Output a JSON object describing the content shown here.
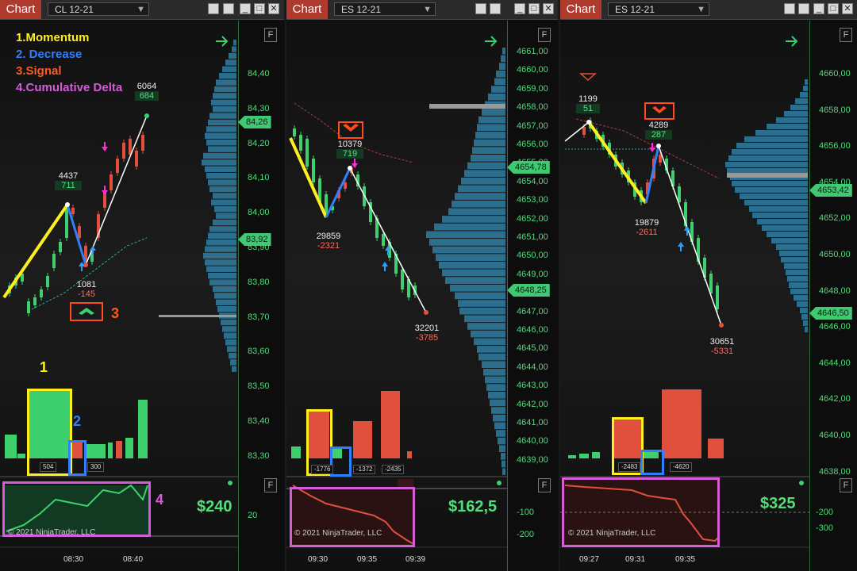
{
  "panels": [
    {
      "tab_label": "Chart",
      "instrument": "CL 12-21",
      "f_label": "F",
      "price_ticks": [
        "84,40",
        "84,30",
        "84,20",
        "84,10",
        "84,00",
        "83,90",
        "83,80",
        "83,70",
        "83,60",
        "83,50",
        "83,40",
        "83,30"
      ],
      "last_price": "84,26",
      "other_price": "83,92",
      "labels": [
        {
          "n": "6064",
          "d": "684",
          "c": "g"
        },
        {
          "n": "4437",
          "d": "711",
          "c": "g"
        },
        {
          "n": "1081",
          "d": "-145",
          "c": "r"
        }
      ],
      "vol_labels": [
        "504",
        "300"
      ],
      "pnl": "$240",
      "indicator_tick": "20",
      "copyright": "© 2021 NinjaTrader, LLC",
      "times": [
        "08:30",
        "08:40"
      ],
      "legend": [
        "1.Momentum",
        "2. Decrease",
        "3.Signal",
        "4.Cumulative Delta"
      ],
      "annotations": [
        "1",
        "2",
        "3",
        "4"
      ]
    },
    {
      "tab_label": "Chart",
      "instrument": "ES 12-21",
      "f_label": "F",
      "price_ticks": [
        "4661,00",
        "4660,00",
        "4659,00",
        "4658,00",
        "4657,00",
        "4656,00",
        "4655,00",
        "4654,00",
        "4653,00",
        "4652,00",
        "4651,00",
        "4650,00",
        "4649,00",
        "4648,00",
        "4647,00",
        "4646,00",
        "4645,00",
        "4644,00",
        "4643,00",
        "4642,00",
        "4641,00",
        "4640,00",
        "4639,00"
      ],
      "last_price": "4654,78",
      "other_price": "4648,25",
      "labels": [
        {
          "n": "10379",
          "d": "719",
          "c": "g"
        },
        {
          "n": "29859",
          "d": "-2321",
          "c": "r"
        },
        {
          "n": "32201",
          "d": "-3785",
          "c": "r"
        }
      ],
      "vol_labels": [
        "-1776",
        "-1372",
        "-2435"
      ],
      "pnl": "$162,5",
      "indicator_ticks": [
        "-100",
        "-200"
      ],
      "copyright": "© 2021 NinjaTrader, LLC",
      "times": [
        "09:30",
        "09:35",
        "09:39"
      ]
    },
    {
      "tab_label": "Chart",
      "instrument": "ES 12-21",
      "f_label": "F",
      "price_ticks": [
        "4660,00",
        "4658,00",
        "4656,00",
        "4654,00",
        "4652,00",
        "4650,00",
        "4648,00",
        "4646,00",
        "4644,00",
        "4642,00",
        "4640,00",
        "4638,00"
      ],
      "last_price": "4653,42",
      "other_price": "4646,50",
      "labels": [
        {
          "n": "1199",
          "d": "51",
          "c": "g"
        },
        {
          "n": "4289",
          "d": "287",
          "c": "g"
        },
        {
          "n": "19879",
          "d": "-2611",
          "c": "r"
        },
        {
          "n": "30651",
          "d": "-5331",
          "c": "r"
        }
      ],
      "vol_labels": [
        "-2483",
        "-4620"
      ],
      "pnl": "$325",
      "indicator_ticks": [
        "-200",
        "-300"
      ],
      "copyright": "© 2021 NinjaTrader, LLC",
      "times": [
        "09:27",
        "09:31",
        "09:35"
      ]
    }
  ],
  "colors": {
    "up": "#3ecf6e",
    "down": "#e0503c",
    "accent": "#b03a2e",
    "profile": "#2f7ea3",
    "signal": "#ff4a1c",
    "momentum": "#ffef1c",
    "decrease": "#2f7fff",
    "delta": "#d45cd8"
  }
}
